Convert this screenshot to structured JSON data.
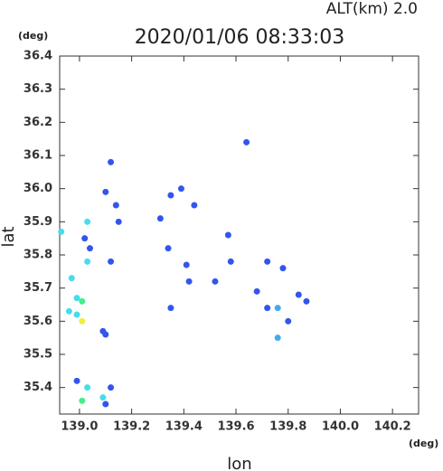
{
  "chart_data": {
    "type": "scatter",
    "title": "2020/01/06 08:33:03",
    "subtitle": "ALT(km) 2.0",
    "y_unit": "(deg)",
    "x_unit": "(deg)",
    "ylabel": "lat",
    "xlabel": "lon",
    "xlim": [
      138.924,
      140.3
    ],
    "ylim": [
      35.32,
      36.4
    ],
    "xticks": [
      {
        "value": 139.0,
        "label": "139.0"
      },
      139.2,
      139.4,
      139.6,
      139.8,
      {
        "value": 140.0,
        "label": "140.0"
      },
      140.2
    ],
    "yticks": [
      35.4,
      35.5,
      35.6,
      35.7,
      35.8,
      35.9,
      {
        "value": 36.0,
        "label": "36.0"
      },
      36.1,
      36.2,
      36.3,
      36.4
    ],
    "x": [
      139.64,
      139.12,
      139.1,
      139.14,
      139.39,
      139.35,
      139.44,
      139.31,
      139.03,
      139.15,
      138.93,
      139.02,
      139.04,
      139.34,
      139.57,
      139.03,
      139.12,
      139.41,
      139.58,
      139.72,
      139.78,
      138.97,
      139.42,
      139.52,
      139.68,
      139.84,
      138.99,
      139.01,
      139.87,
      139.72,
      139.76,
      139.35,
      138.96,
      138.99,
      139.01,
      139.8,
      139.09,
      139.1,
      139.76,
      138.99,
      139.03,
      139.12,
      139.01,
      139.09,
      139.1
    ],
    "y": [
      36.14,
      36.08,
      35.99,
      35.95,
      36.0,
      35.98,
      35.95,
      35.91,
      35.9,
      35.9,
      35.87,
      35.85,
      35.82,
      35.82,
      35.86,
      35.78,
      35.78,
      35.77,
      35.78,
      35.78,
      35.76,
      35.73,
      35.72,
      35.72,
      35.69,
      35.68,
      35.67,
      35.66,
      35.66,
      35.64,
      35.64,
      35.64,
      35.63,
      35.62,
      35.6,
      35.6,
      35.57,
      35.56,
      35.55,
      35.42,
      35.4,
      35.4,
      35.36,
      35.37,
      35.35
    ],
    "colors": [
      "#3355ee",
      "#3355ee",
      "#3355ee",
      "#3355ee",
      "#3355ee",
      "#3355ee",
      "#3355ee",
      "#3355ee",
      "#44ddee",
      "#3355ee",
      "#44ddee",
      "#3355ee",
      "#3355ee",
      "#3355ee",
      "#3355ee",
      "#44ddee",
      "#3355ee",
      "#3355ee",
      "#3355ee",
      "#3355ee",
      "#3355ee",
      "#44ddee",
      "#3355ee",
      "#3355ee",
      "#3355ee",
      "#3355ee",
      "#44ddee",
      "#44ee88",
      "#3355ee",
      "#3355ee",
      "#44aaee",
      "#3355ee",
      "#44ddee",
      "#44ddee",
      "#eeee44",
      "#3355ee",
      "#3355ee",
      "#3355ee",
      "#44aaee",
      "#3355ee",
      "#44ddee",
      "#3355ee",
      "#44ee88",
      "#44ddee",
      "#3355ee"
    ]
  }
}
